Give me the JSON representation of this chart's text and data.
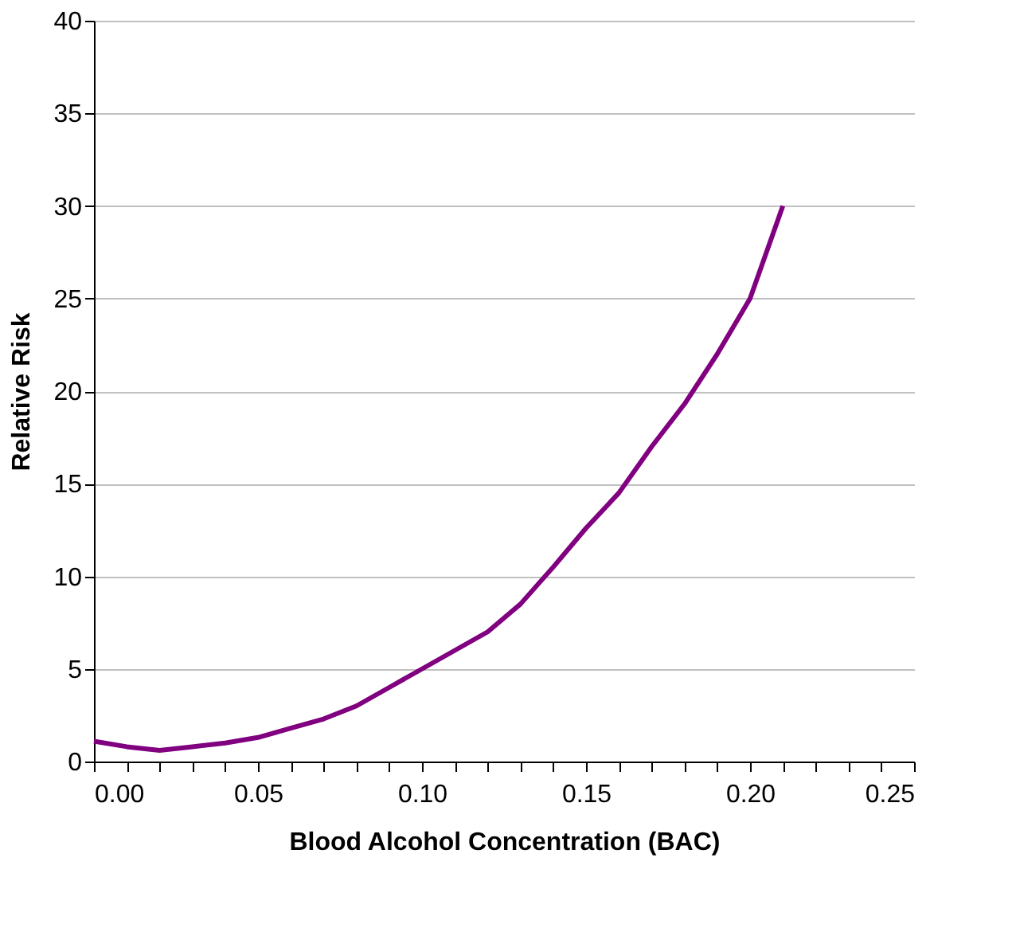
{
  "chart_data": {
    "type": "line",
    "xlabel": "Blood Alcohol Concentration (BAC)",
    "ylabel": "Relative Risk",
    "x": [
      0.0,
      0.01,
      0.02,
      0.03,
      0.04,
      0.05,
      0.06,
      0.07,
      0.08,
      0.09,
      0.1,
      0.11,
      0.12,
      0.13,
      0.14,
      0.15,
      0.16,
      0.17,
      0.18,
      0.19,
      0.2,
      0.21
    ],
    "series": [
      {
        "color": "#800080",
        "values": [
          1.1,
          0.8,
          0.6,
          0.8,
          1.0,
          1.3,
          1.8,
          2.3,
          3.0,
          4.0,
          5.0,
          6.0,
          7.0,
          8.5,
          10.5,
          12.6,
          14.5,
          17.0,
          19.3,
          22.0,
          25.0,
          30.0
        ]
      }
    ],
    "xlim": [
      0,
      0.25
    ],
    "xticks": [
      {
        "value": 0,
        "label": "0.00"
      },
      {
        "value": 0.01,
        "label": null
      },
      {
        "value": 0.02,
        "label": null
      },
      {
        "value": 0.03,
        "label": null
      },
      {
        "value": 0.04,
        "label": null
      },
      {
        "value": 0.05,
        "label": "0.05"
      },
      {
        "value": 0.06,
        "label": null
      },
      {
        "value": 0.07,
        "label": null
      },
      {
        "value": 0.08,
        "label": null
      },
      {
        "value": 0.09,
        "label": null
      },
      {
        "value": 0.1,
        "label": "0.10"
      },
      {
        "value": 0.11,
        "label": null
      },
      {
        "value": 0.12,
        "label": null
      },
      {
        "value": 0.13,
        "label": null
      },
      {
        "value": 0.14,
        "label": null
      },
      {
        "value": 0.15,
        "label": "0.15"
      },
      {
        "value": 0.16,
        "label": null
      },
      {
        "value": 0.17,
        "label": null
      },
      {
        "value": 0.18,
        "label": null
      },
      {
        "value": 0.19,
        "label": null
      },
      {
        "value": 0.2,
        "label": "0.20"
      },
      {
        "value": 0.21,
        "label": null
      },
      {
        "value": 0.22,
        "label": null
      },
      {
        "value": 0.23,
        "label": null
      },
      {
        "value": 0.24,
        "label": null
      },
      {
        "value": 0.25,
        "label": "0.25"
      }
    ],
    "ylim": [
      0,
      40
    ],
    "yticks": [
      0,
      5,
      10,
      15,
      20,
      25,
      30,
      35,
      40
    ],
    "grid": "y",
    "marker": "none",
    "line_style": "solid"
  }
}
